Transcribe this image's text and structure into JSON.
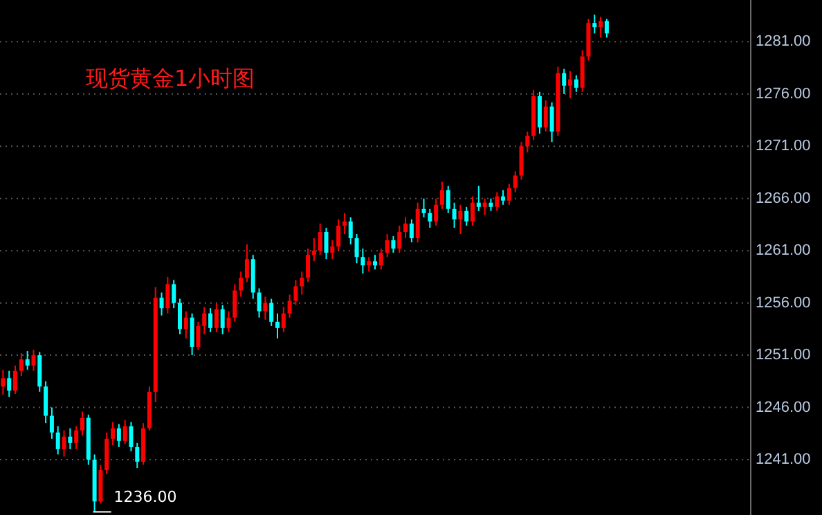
{
  "chart_data": {
    "type": "candlestick",
    "title": "现货黄金1小时图",
    "categories": [
      null,
      null,
      null,
      null,
      null,
      null,
      null,
      null,
      null,
      null,
      null,
      null,
      null,
      null,
      null,
      null,
      null,
      null,
      null,
      null,
      null,
      null,
      null,
      null,
      null,
      null,
      null,
      null,
      null,
      null,
      null,
      null,
      null,
      null,
      null,
      null,
      null,
      null,
      null,
      null,
      null,
      null,
      null,
      null,
      null,
      null,
      null,
      null,
      null,
      null,
      null,
      null,
      null,
      null,
      null,
      null,
      null,
      null,
      null,
      null,
      null,
      null,
      null,
      null,
      null,
      null,
      null,
      null,
      null,
      null,
      null,
      null,
      null,
      null,
      null,
      null,
      null,
      null,
      null,
      null,
      null,
      null,
      null,
      null,
      null,
      null,
      null,
      null,
      null,
      null,
      null,
      null,
      null,
      null,
      null,
      null,
      null,
      null,
      null,
      null,
      null,
      null,
      null,
      null,
      null,
      null,
      null,
      null,
      null,
      null,
      null,
      null,
      null,
      null,
      null,
      null,
      null,
      null,
      null,
      null,
      null,
      null,
      null
    ],
    "ohlc": [
      [
        1248.0,
        1249.6,
        1247.2,
        1248.8
      ],
      [
        1248.8,
        1249.5,
        1247.0,
        1247.6
      ],
      [
        1247.6,
        1250.0,
        1247.3,
        1249.5
      ],
      [
        1249.5,
        1251.2,
        1249.0,
        1250.6
      ],
      [
        1250.6,
        1251.4,
        1249.6,
        1250.0
      ],
      [
        1250.0,
        1251.5,
        1249.5,
        1251.0
      ],
      [
        1251.0,
        1251.3,
        1247.5,
        1248.0
      ],
      [
        1248.0,
        1248.5,
        1244.5,
        1245.2
      ],
      [
        1245.2,
        1246.0,
        1243.0,
        1243.6
      ],
      [
        1243.6,
        1244.2,
        1241.5,
        1242.0
      ],
      [
        1242.0,
        1243.8,
        1241.3,
        1243.2
      ],
      [
        1243.2,
        1244.0,
        1242.0,
        1242.6
      ],
      [
        1242.6,
        1244.2,
        1242.0,
        1243.8
      ],
      [
        1243.8,
        1245.6,
        1243.3,
        1245.0
      ],
      [
        1245.0,
        1245.3,
        1240.5,
        1241.0
      ],
      [
        1241.0,
        1241.5,
        1236.0,
        1237.0
      ],
      [
        1237.0,
        1240.5,
        1236.8,
        1240.0
      ],
      [
        1240.0,
        1243.6,
        1239.6,
        1243.0
      ],
      [
        1243.0,
        1244.6,
        1242.4,
        1244.0
      ],
      [
        1244.0,
        1244.4,
        1242.2,
        1242.8
      ],
      [
        1242.8,
        1244.8,
        1242.5,
        1244.2
      ],
      [
        1244.2,
        1244.6,
        1241.8,
        1242.2
      ],
      [
        1242.2,
        1242.6,
        1240.2,
        1240.8
      ],
      [
        1240.8,
        1244.5,
        1240.5,
        1244.0
      ],
      [
        1244.0,
        1248.0,
        1243.8,
        1247.5
      ],
      [
        1247.5,
        1257.5,
        1246.5,
        1256.5
      ],
      [
        1256.5,
        1257.0,
        1254.8,
        1255.5
      ],
      [
        1255.5,
        1258.5,
        1255.0,
        1257.8
      ],
      [
        1257.8,
        1258.2,
        1255.5,
        1256.0
      ],
      [
        1256.0,
        1256.4,
        1253.0,
        1253.5
      ],
      [
        1253.5,
        1255.2,
        1252.6,
        1254.6
      ],
      [
        1254.6,
        1255.0,
        1251.0,
        1251.8
      ],
      [
        1251.8,
        1254.2,
        1251.5,
        1253.8
      ],
      [
        1253.8,
        1255.6,
        1253.0,
        1255.0
      ],
      [
        1255.0,
        1255.5,
        1253.2,
        1253.6
      ],
      [
        1253.6,
        1256.0,
        1253.2,
        1255.4
      ],
      [
        1255.4,
        1255.8,
        1253.0,
        1253.6
      ],
      [
        1253.6,
        1255.2,
        1253.2,
        1254.6
      ],
      [
        1254.6,
        1257.8,
        1254.2,
        1257.2
      ],
      [
        1257.2,
        1259.0,
        1256.6,
        1258.4
      ],
      [
        1258.4,
        1261.6,
        1258.0,
        1260.2
      ],
      [
        1260.2,
        1260.6,
        1256.4,
        1257.0
      ],
      [
        1257.0,
        1257.4,
        1254.6,
        1255.2
      ],
      [
        1255.2,
        1256.6,
        1254.4,
        1256.0
      ],
      [
        1256.0,
        1256.4,
        1253.8,
        1254.2
      ],
      [
        1254.2,
        1255.0,
        1252.6,
        1253.6
      ],
      [
        1253.6,
        1255.6,
        1253.2,
        1255.0
      ],
      [
        1255.0,
        1256.8,
        1254.6,
        1256.2
      ],
      [
        1256.2,
        1258.2,
        1255.8,
        1257.6
      ],
      [
        1257.6,
        1259.0,
        1256.8,
        1258.4
      ],
      [
        1258.4,
        1261.2,
        1258.0,
        1260.6
      ],
      [
        1260.6,
        1262.2,
        1260.0,
        1261.0
      ],
      [
        1261.0,
        1263.6,
        1260.6,
        1262.8
      ],
      [
        1262.8,
        1263.2,
        1260.2,
        1260.8
      ],
      [
        1260.8,
        1262.0,
        1260.2,
        1261.4
      ],
      [
        1261.4,
        1264.0,
        1261.0,
        1263.4
      ],
      [
        1263.4,
        1264.6,
        1262.6,
        1263.8
      ],
      [
        1263.8,
        1264.2,
        1261.6,
        1262.2
      ],
      [
        1262.2,
        1262.6,
        1259.8,
        1260.4
      ],
      [
        1260.4,
        1261.2,
        1258.8,
        1259.6
      ],
      [
        1259.6,
        1260.4,
        1259.0,
        1260.0
      ],
      [
        1260.0,
        1260.6,
        1259.2,
        1259.6
      ],
      [
        1259.6,
        1261.2,
        1259.2,
        1260.8
      ],
      [
        1260.8,
        1262.6,
        1260.4,
        1262.0
      ],
      [
        1262.0,
        1262.4,
        1260.8,
        1261.2
      ],
      [
        1261.2,
        1263.4,
        1260.8,
        1262.8
      ],
      [
        1262.8,
        1264.2,
        1262.2,
        1263.6
      ],
      [
        1263.6,
        1264.0,
        1261.8,
        1262.2
      ],
      [
        1262.2,
        1265.6,
        1261.8,
        1265.0
      ],
      [
        1265.0,
        1266.0,
        1264.2,
        1264.6
      ],
      [
        1264.6,
        1265.0,
        1263.2,
        1263.8
      ],
      [
        1263.8,
        1266.0,
        1263.4,
        1265.4
      ],
      [
        1265.4,
        1267.6,
        1265.0,
        1266.8
      ],
      [
        1266.8,
        1267.2,
        1264.6,
        1265.0
      ],
      [
        1265.0,
        1265.6,
        1263.2,
        1264.0
      ],
      [
        1264.0,
        1265.4,
        1262.6,
        1264.8
      ],
      [
        1264.8,
        1265.2,
        1263.4,
        1263.8
      ],
      [
        1263.8,
        1266.2,
        1263.4,
        1265.6
      ],
      [
        1265.6,
        1267.2,
        1264.8,
        1265.2
      ],
      [
        1265.2,
        1266.0,
        1264.4,
        1265.6
      ],
      [
        1265.6,
        1266.0,
        1264.8,
        1265.2
      ],
      [
        1265.2,
        1266.6,
        1264.8,
        1266.2
      ],
      [
        1266.2,
        1266.8,
        1265.4,
        1265.8
      ],
      [
        1265.8,
        1267.4,
        1265.4,
        1267.0
      ],
      [
        1267.0,
        1268.6,
        1266.6,
        1268.2
      ],
      [
        1268.2,
        1271.4,
        1267.8,
        1271.0
      ],
      [
        1271.0,
        1272.4,
        1270.4,
        1272.0
      ],
      [
        1272.0,
        1276.4,
        1271.6,
        1275.8
      ],
      [
        1275.8,
        1276.2,
        1272.2,
        1272.8
      ],
      [
        1272.8,
        1275.4,
        1272.4,
        1274.8
      ],
      [
        1274.8,
        1275.2,
        1271.4,
        1272.4
      ],
      [
        1272.4,
        1278.6,
        1272.0,
        1278.0
      ],
      [
        1278.0,
        1278.4,
        1276.0,
        1276.8
      ],
      [
        1276.8,
        1278.2,
        1275.6,
        1277.4
      ],
      [
        1277.4,
        1277.8,
        1276.2,
        1276.6
      ],
      [
        1276.6,
        1280.2,
        1276.2,
        1279.6
      ],
      [
        1279.6,
        1283.2,
        1279.2,
        1282.8
      ],
      [
        1282.8,
        1283.6,
        1281.8,
        1282.4
      ],
      [
        1282.4,
        1283.4,
        1281.4,
        1283.0
      ],
      [
        1283.0,
        1283.2,
        1281.4,
        1281.8
      ],
      null,
      null,
      null,
      null,
      null,
      null,
      null,
      null,
      null,
      null,
      null,
      null,
      null,
      null,
      null,
      null,
      null,
      null,
      null,
      null,
      null,
      null,
      null
    ],
    "colors": [
      "#ff0000",
      "#00ffff",
      "#ff0000",
      "#ff0000",
      "#00ffff",
      "#ff0000",
      "#00ffff",
      "#00ffff",
      "#00ffff",
      "#00ffff",
      "#ff0000",
      "#00ffff",
      "#ff0000",
      "#ff0000",
      "#00ffff",
      "#00ffff",
      "#ff0000",
      "#ff0000",
      "#ff0000",
      "#00ffff",
      "#ff0000",
      "#00ffff",
      "#00ffff",
      "#ff0000",
      "#ff0000",
      "#ff0000",
      "#00ffff",
      "#ff0000",
      "#00ffff",
      "#00ffff",
      "#ff0000",
      "#00ffff",
      "#ff0000",
      "#ff0000",
      "#00ffff",
      "#ff0000",
      "#00ffff",
      "#ff0000",
      "#ff0000",
      "#ff0000",
      "#ff0000",
      "#00ffff",
      "#00ffff",
      "#ff0000",
      "#00ffff",
      "#00ffff",
      "#ff0000",
      "#ff0000",
      "#ff0000",
      "#ff0000",
      "#ff0000",
      "#ff0000",
      "#ff0000",
      "#00ffff",
      "#ff0000",
      "#ff0000",
      "#ff0000",
      "#00ffff",
      "#00ffff",
      "#00ffff",
      "#ff0000",
      "#00ffff",
      "#ff0000",
      "#ff0000",
      "#00ffff",
      "#ff0000",
      "#ff0000",
      "#00ffff",
      "#ff0000",
      "#00ffff",
      "#00ffff",
      "#ff0000",
      "#ff0000",
      "#00ffff",
      "#00ffff",
      "#ff0000",
      "#00ffff",
      "#ff0000",
      "#00ffff",
      "#ff0000",
      "#00ffff",
      "#ff0000",
      "#00ffff",
      "#ff0000",
      "#ff0000",
      "#ff0000",
      "#ff0000",
      "#ff0000",
      "#00ffff",
      "#ff0000",
      "#00ffff",
      "#ff0000",
      "#00ffff",
      "#ff0000",
      "#00ffff",
      "#ff0000",
      "#ff0000",
      "#00ffff",
      "#ff0000",
      "#00ffff",
      null,
      null,
      null,
      null,
      null,
      null,
      null,
      null,
      null,
      null,
      null,
      null,
      null,
      null,
      null,
      null,
      null,
      null,
      null,
      null,
      null,
      null,
      null
    ],
    "ylim": [
      1235.7,
      1285
    ],
    "yticks": [
      {
        "value": 1241,
        "label": "1241.00"
      },
      {
        "value": 1246,
        "label": "1246.00"
      },
      {
        "value": 1251,
        "label": "1251.00"
      },
      {
        "value": 1256,
        "label": "1256.00"
      },
      {
        "value": 1261,
        "label": "1261.00"
      },
      {
        "value": 1266,
        "label": "1266.00"
      },
      {
        "value": 1271,
        "label": "1271.00"
      },
      {
        "value": 1276,
        "label": "1276.00"
      },
      {
        "value": 1281,
        "label": "1281.00"
      }
    ],
    "grid": "y",
    "annotations": [
      "1236.00"
    ]
  }
}
